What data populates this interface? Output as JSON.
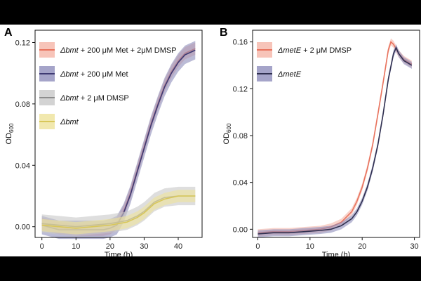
{
  "chart_data": [
    {
      "panel": "A",
      "type": "line",
      "xlabel": "Time (h)",
      "ylabel": "OD600",
      "ylabel_main": "OD",
      "ylabel_sub": "600",
      "xlim": [
        -2,
        47
      ],
      "ylim": [
        -0.007,
        0.128
      ],
      "xticks": [
        0,
        10,
        20,
        30,
        40
      ],
      "yticks": [
        0.0,
        0.04,
        0.08,
        0.12
      ],
      "ytick_labels": [
        "0.00",
        "0.04",
        "0.08",
        "0.12"
      ],
      "legend_position": "top-left",
      "series": [
        {
          "name": "Δbmt + 200 μM Met + 2μM DMSP",
          "name_italic": "Δbmt",
          "name_rest": " + 200 μM Met + 2μM DMSP",
          "color": "#E8735E",
          "band_color": "#F5B5A8",
          "x": [
            0,
            5,
            10,
            15,
            18,
            20,
            22,
            24,
            26,
            28,
            30,
            32,
            34,
            36,
            38,
            40,
            42,
            45
          ],
          "y": [
            0.002,
            -0.001,
            -0.002,
            -0.002,
            -0.002,
            -0.001,
            0.002,
            0.01,
            0.022,
            0.037,
            0.052,
            0.067,
            0.08,
            0.092,
            0.101,
            0.108,
            0.113,
            0.116
          ],
          "band": 0.004
        },
        {
          "name": "Δbmt + 200 μM Met",
          "name_italic": "Δbmt",
          "name_rest": " + 200 μM Met",
          "color": "#3E3A73",
          "band_color": "#8E8DBB",
          "x": [
            0,
            5,
            10,
            15,
            18,
            20,
            22,
            24,
            26,
            28,
            30,
            32,
            34,
            36,
            38,
            40,
            42,
            45
          ],
          "y": [
            0.001,
            -0.002,
            -0.002,
            -0.002,
            -0.002,
            -0.001,
            0.001,
            0.009,
            0.021,
            0.036,
            0.051,
            0.066,
            0.079,
            0.091,
            0.1,
            0.107,
            0.112,
            0.115
          ],
          "band": 0.006
        },
        {
          "name": "Δbmt + 2 μM DMSP",
          "name_italic": "Δbmt",
          "name_rest": " + 2 μM DMSP",
          "color": "#8C8C8C",
          "band_color": "#C8C8C8",
          "x": [
            0,
            5,
            10,
            15,
            20,
            25,
            28,
            30,
            33,
            36,
            40,
            45
          ],
          "y": [
            0.002,
            0.001,
            0.0,
            0.001,
            0.002,
            0.004,
            0.007,
            0.01,
            0.016,
            0.019,
            0.02,
            0.02
          ],
          "band": 0.006
        },
        {
          "name": "Δbmt",
          "name_italic": "Δbmt",
          "name_rest": "",
          "color": "#D8C75A",
          "band_color": "#EEE29A",
          "x": [
            0,
            5,
            10,
            15,
            20,
            25,
            28,
            30,
            33,
            36,
            40,
            45
          ],
          "y": [
            0.001,
            0.0,
            -0.001,
            0.0,
            0.001,
            0.003,
            0.006,
            0.009,
            0.015,
            0.018,
            0.02,
            0.02
          ],
          "band": 0.004
        }
      ]
    },
    {
      "panel": "B",
      "type": "line",
      "xlabel": "Time (h)",
      "ylabel": "OD600",
      "ylabel_main": "OD",
      "ylabel_sub": "600",
      "xlim": [
        -1,
        31
      ],
      "ylim": [
        -0.007,
        0.17
      ],
      "xticks": [
        0,
        10,
        20,
        30
      ],
      "yticks": [
        0.0,
        0.04,
        0.08,
        0.12,
        0.16
      ],
      "ytick_labels": [
        "0.00",
        "0.04",
        "0.08",
        "0.12",
        "0.16"
      ],
      "legend_position": "top-left",
      "series": [
        {
          "name": "ΔmetE + 2 μM DMSP",
          "name_italic": "ΔmetE",
          "name_rest": " + 2 μM DMSP",
          "color": "#E8735E",
          "band_color": "#F5B5A8",
          "x": [
            0,
            3,
            6,
            9,
            12,
            14,
            16,
            18,
            19,
            20,
            21,
            22,
            23,
            24,
            25,
            25.5,
            26,
            27,
            28,
            29.5
          ],
          "y": [
            -0.003,
            -0.002,
            -0.002,
            -0.001,
            0.0,
            0.002,
            0.006,
            0.015,
            0.024,
            0.036,
            0.052,
            0.072,
            0.098,
            0.125,
            0.153,
            0.16,
            0.158,
            0.15,
            0.145,
            0.141
          ],
          "band": 0.003
        },
        {
          "name": "ΔmetE",
          "name_italic": "ΔmetE",
          "name_rest": "",
          "color": "#2F2F4F",
          "band_color": "#8E8DBB",
          "x": [
            0,
            3,
            6,
            9,
            12,
            14,
            16,
            18,
            19,
            20,
            21,
            22,
            23,
            24,
            25,
            26,
            26.5,
            27,
            28,
            29.5
          ],
          "y": [
            -0.004,
            -0.003,
            -0.003,
            -0.002,
            -0.001,
            0.0,
            0.003,
            0.009,
            0.015,
            0.024,
            0.036,
            0.052,
            0.072,
            0.098,
            0.128,
            0.15,
            0.155,
            0.15,
            0.144,
            0.14
          ],
          "band": 0.003
        }
      ]
    }
  ]
}
